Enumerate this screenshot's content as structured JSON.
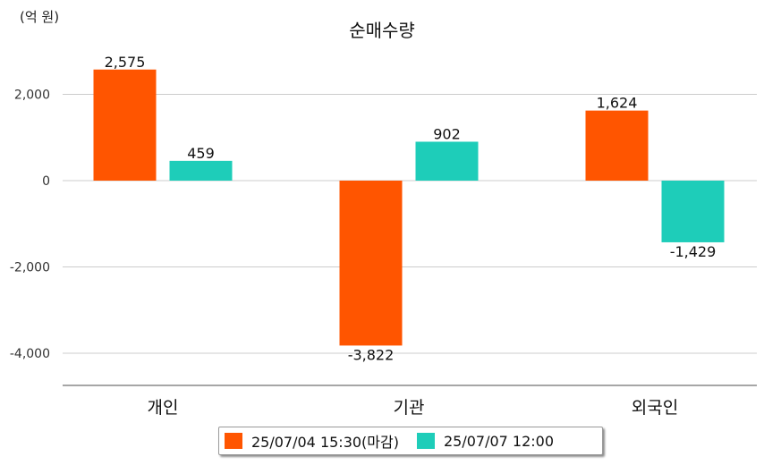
{
  "chart_data": {
    "type": "bar",
    "title": "순매수량",
    "unit_label": "(억 원)",
    "categories": [
      "개인",
      "기관",
      "외국인"
    ],
    "series": [
      {
        "name": "25/07/04 15:30(마감)",
        "color": "#ff5500",
        "values": [
          2575,
          -3822,
          1624
        ],
        "labels": [
          "2,575",
          "-3,822",
          "1,624"
        ]
      },
      {
        "name": "25/07/07 12:00",
        "color": "#1ecdb9",
        "values": [
          459,
          902,
          -1429
        ],
        "labels": [
          "459",
          "902",
          "-1,429"
        ]
      }
    ],
    "y_ticks": [
      2000,
      0,
      -2000,
      -4000
    ],
    "y_tick_labels": [
      "2,000",
      "0",
      "-2,000",
      "-4,000"
    ],
    "ylim": [
      -4800,
      2950
    ],
    "grid": true,
    "legend_position": "bottom"
  }
}
